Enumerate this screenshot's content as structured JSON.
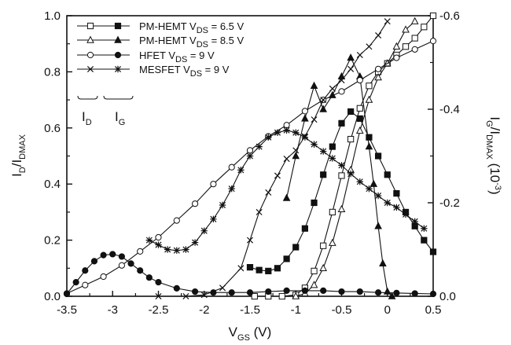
{
  "chart_data": {
    "type": "line",
    "x_axis": {
      "range": [
        -3.5,
        0.5
      ],
      "ticks": [
        -3.5,
        -3,
        -2.5,
        -2,
        -1.5,
        -1,
        -0.5,
        0,
        0.5
      ],
      "tick_labels": [
        "-3.5",
        "-3",
        "-2.5",
        "-2",
        "-1.5",
        "-1",
        "-0.5",
        "0",
        "0.5"
      ]
    },
    "y_left": {
      "range": [
        0,
        1.0
      ],
      "ticks": [
        0,
        0.2,
        0.4,
        0.6,
        0.8,
        1.0
      ],
      "tick_labels": [
        "0.0",
        "0.2",
        "0.4",
        "0.6",
        "0.8",
        "1.0"
      ]
    },
    "y_right": {
      "range": [
        0,
        -0.6
      ],
      "ticks": [
        0,
        -0.2,
        -0.4,
        -0.6
      ],
      "tick_labels": [
        "0.0",
        "-0.2",
        "-0.4",
        "-0.6"
      ]
    },
    "legend": {
      "placement": "top-left",
      "entries": [
        {
          "device": "PM-HEMT",
          "vds": "6.5 V",
          "open_marker": "square",
          "filled_marker": "square"
        },
        {
          "device": "PM-HEMT",
          "vds": "8.5 V",
          "open_marker": "triangle",
          "filled_marker": "triangle"
        },
        {
          "device": "HFET",
          "vds": "9 V",
          "open_marker": "circle",
          "filled_marker": "circle"
        },
        {
          "device": "MESFET",
          "vds": "9 V",
          "open_marker": "x",
          "filled_marker": "star"
        }
      ],
      "label_id": "I_D",
      "label_ig": "I_G"
    },
    "series": [
      {
        "id": "pm65_id",
        "marker": "square",
        "filled": false,
        "axis": "left",
        "points": [
          [
            -1.45,
            0
          ],
          [
            -1.3,
            0
          ],
          [
            -1.15,
            0
          ],
          [
            -1.0,
            0.005
          ],
          [
            -0.9,
            0.03
          ],
          [
            -0.8,
            0.09
          ],
          [
            -0.7,
            0.18
          ],
          [
            -0.6,
            0.3
          ],
          [
            -0.5,
            0.43
          ],
          [
            -0.4,
            0.56
          ],
          [
            -0.3,
            0.67
          ],
          [
            -0.2,
            0.75
          ],
          [
            -0.1,
            0.8
          ],
          [
            0,
            0.83
          ],
          [
            0.1,
            0.86
          ],
          [
            0.2,
            0.89
          ],
          [
            0.3,
            0.92
          ],
          [
            0.4,
            0.96
          ],
          [
            0.5,
            1.0
          ]
        ]
      },
      {
        "id": "pm65_ig",
        "marker": "square",
        "filled": true,
        "axis": "right",
        "points": [
          [
            -1.5,
            -0.062
          ],
          [
            -1.4,
            -0.056
          ],
          [
            -1.3,
            -0.054
          ],
          [
            -1.2,
            -0.06
          ],
          [
            -1.1,
            -0.08
          ],
          [
            -1.0,
            -0.105
          ],
          [
            -0.9,
            -0.145
          ],
          [
            -0.8,
            -0.2
          ],
          [
            -0.7,
            -0.26
          ],
          [
            -0.6,
            -0.32
          ],
          [
            -0.5,
            -0.37
          ],
          [
            -0.4,
            -0.395
          ],
          [
            -0.3,
            -0.38
          ],
          [
            -0.2,
            -0.34
          ],
          [
            -0.1,
            -0.3
          ],
          [
            0,
            -0.26
          ],
          [
            0.1,
            -0.22
          ],
          [
            0.2,
            -0.18
          ],
          [
            0.3,
            -0.15
          ],
          [
            0.4,
            -0.12
          ],
          [
            0.5,
            -0.095
          ]
        ]
      },
      {
        "id": "pm85_id",
        "marker": "triangle",
        "filled": false,
        "axis": "left",
        "points": [
          [
            -1.0,
            0
          ],
          [
            -0.9,
            0.01
          ],
          [
            -0.8,
            0.04
          ],
          [
            -0.7,
            0.1
          ],
          [
            -0.6,
            0.19
          ],
          [
            -0.5,
            0.31
          ],
          [
            -0.4,
            0.45
          ],
          [
            -0.3,
            0.59
          ],
          [
            -0.2,
            0.7
          ],
          [
            -0.1,
            0.78
          ],
          [
            0,
            0.83
          ],
          [
            0.1,
            0.89
          ],
          [
            0.2,
            0.95
          ],
          [
            0.3,
            0.98
          ]
        ]
      },
      {
        "id": "pm85_ig",
        "marker": "triangle",
        "filled": true,
        "axis": "right",
        "points": [
          [
            -1.1,
            -0.21
          ],
          [
            -1.0,
            -0.3
          ],
          [
            -0.9,
            -0.38
          ],
          [
            -0.8,
            -0.45
          ],
          [
            -0.7,
            -0.4
          ],
          [
            -0.6,
            -0.43
          ],
          [
            -0.5,
            -0.47
          ],
          [
            -0.4,
            -0.51
          ],
          [
            -0.3,
            -0.47
          ],
          [
            -0.2,
            -0.32
          ],
          [
            -0.15,
            -0.24
          ],
          [
            -0.1,
            -0.15
          ],
          [
            -0.05,
            -0.07
          ],
          [
            0,
            -0.01
          ],
          [
            0.05,
            0
          ]
        ]
      },
      {
        "id": "hfet_id",
        "marker": "circle",
        "filled": false,
        "axis": "left",
        "points": [
          [
            -3.5,
            0.01
          ],
          [
            -3.3,
            0.04
          ],
          [
            -3.1,
            0.07
          ],
          [
            -2.9,
            0.11
          ],
          [
            -2.7,
            0.16
          ],
          [
            -2.5,
            0.21
          ],
          [
            -2.3,
            0.27
          ],
          [
            -2.1,
            0.33
          ],
          [
            -1.9,
            0.4
          ],
          [
            -1.7,
            0.46
          ],
          [
            -1.5,
            0.52
          ],
          [
            -1.3,
            0.57
          ],
          [
            -1.1,
            0.61
          ],
          [
            -0.9,
            0.66
          ],
          [
            -0.7,
            0.7
          ],
          [
            -0.5,
            0.73
          ],
          [
            -0.3,
            0.77
          ],
          [
            -0.1,
            0.81
          ],
          [
            0.1,
            0.85
          ],
          [
            0.3,
            0.88
          ],
          [
            0.5,
            0.91
          ]
        ]
      },
      {
        "id": "hfet_ig",
        "marker": "circle",
        "filled": true,
        "axis": "right",
        "points": [
          [
            -3.5,
            -0.005
          ],
          [
            -3.4,
            -0.03
          ],
          [
            -3.3,
            -0.055
          ],
          [
            -3.2,
            -0.075
          ],
          [
            -3.1,
            -0.088
          ],
          [
            -3.0,
            -0.09
          ],
          [
            -2.9,
            -0.085
          ],
          [
            -2.8,
            -0.07
          ],
          [
            -2.7,
            -0.055
          ],
          [
            -2.6,
            -0.04
          ],
          [
            -2.5,
            -0.03
          ],
          [
            -2.3,
            -0.017
          ],
          [
            -2.1,
            -0.01
          ],
          [
            -1.9,
            -0.008
          ],
          [
            -1.7,
            -0.008
          ],
          [
            -1.5,
            -0.008
          ],
          [
            -1.3,
            -0.01
          ],
          [
            -1.1,
            -0.012
          ],
          [
            -0.9,
            -0.012
          ],
          [
            -0.7,
            -0.012
          ],
          [
            -0.5,
            -0.01
          ],
          [
            -0.3,
            -0.01
          ],
          [
            -0.1,
            -0.008
          ],
          [
            0.1,
            -0.007
          ],
          [
            0.3,
            -0.006
          ],
          [
            0.5,
            -0.005
          ]
        ]
      },
      {
        "id": "mes_id",
        "marker": "x",
        "filled": false,
        "axis": "left",
        "points": [
          [
            -2.5,
            0
          ],
          [
            -2.2,
            0
          ],
          [
            -2.0,
            0.005
          ],
          [
            -1.8,
            0.03
          ],
          [
            -1.6,
            0.1
          ],
          [
            -1.5,
            0.2
          ],
          [
            -1.4,
            0.3
          ],
          [
            -1.3,
            0.37
          ],
          [
            -1.2,
            0.43
          ],
          [
            -1.1,
            0.49
          ],
          [
            -1.0,
            0.52
          ],
          [
            -0.9,
            0.57
          ],
          [
            -0.8,
            0.63
          ],
          [
            -0.7,
            0.7
          ],
          [
            -0.6,
            0.74
          ],
          [
            -0.5,
            0.77
          ],
          [
            -0.4,
            0.81
          ],
          [
            -0.3,
            0.86
          ],
          [
            -0.2,
            0.89
          ],
          [
            -0.1,
            0.93
          ],
          [
            0,
            0.98
          ]
        ]
      },
      {
        "id": "mes_ig",
        "marker": "star",
        "filled": true,
        "axis": "right",
        "points": [
          [
            -2.6,
            -0.12
          ],
          [
            -2.5,
            -0.11
          ],
          [
            -2.4,
            -0.1
          ],
          [
            -2.3,
            -0.098
          ],
          [
            -2.2,
            -0.1
          ],
          [
            -2.1,
            -0.115
          ],
          [
            -2.0,
            -0.14
          ],
          [
            -1.9,
            -0.165
          ],
          [
            -1.8,
            -0.195
          ],
          [
            -1.7,
            -0.23
          ],
          [
            -1.6,
            -0.27
          ],
          [
            -1.5,
            -0.3
          ],
          [
            -1.4,
            -0.32
          ],
          [
            -1.3,
            -0.34
          ],
          [
            -1.2,
            -0.35
          ],
          [
            -1.1,
            -0.355
          ],
          [
            -1.0,
            -0.35
          ],
          [
            -0.9,
            -0.34
          ],
          [
            -0.8,
            -0.325
          ],
          [
            -0.7,
            -0.31
          ],
          [
            -0.6,
            -0.295
          ],
          [
            -0.5,
            -0.28
          ],
          [
            -0.4,
            -0.262
          ],
          [
            -0.3,
            -0.245
          ],
          [
            -0.2,
            -0.23
          ],
          [
            -0.1,
            -0.215
          ],
          [
            0,
            -0.2
          ],
          [
            0.1,
            -0.19
          ],
          [
            0.2,
            -0.175
          ],
          [
            0.3,
            -0.16
          ],
          [
            0.4,
            -0.145
          ]
        ]
      }
    ]
  }
}
